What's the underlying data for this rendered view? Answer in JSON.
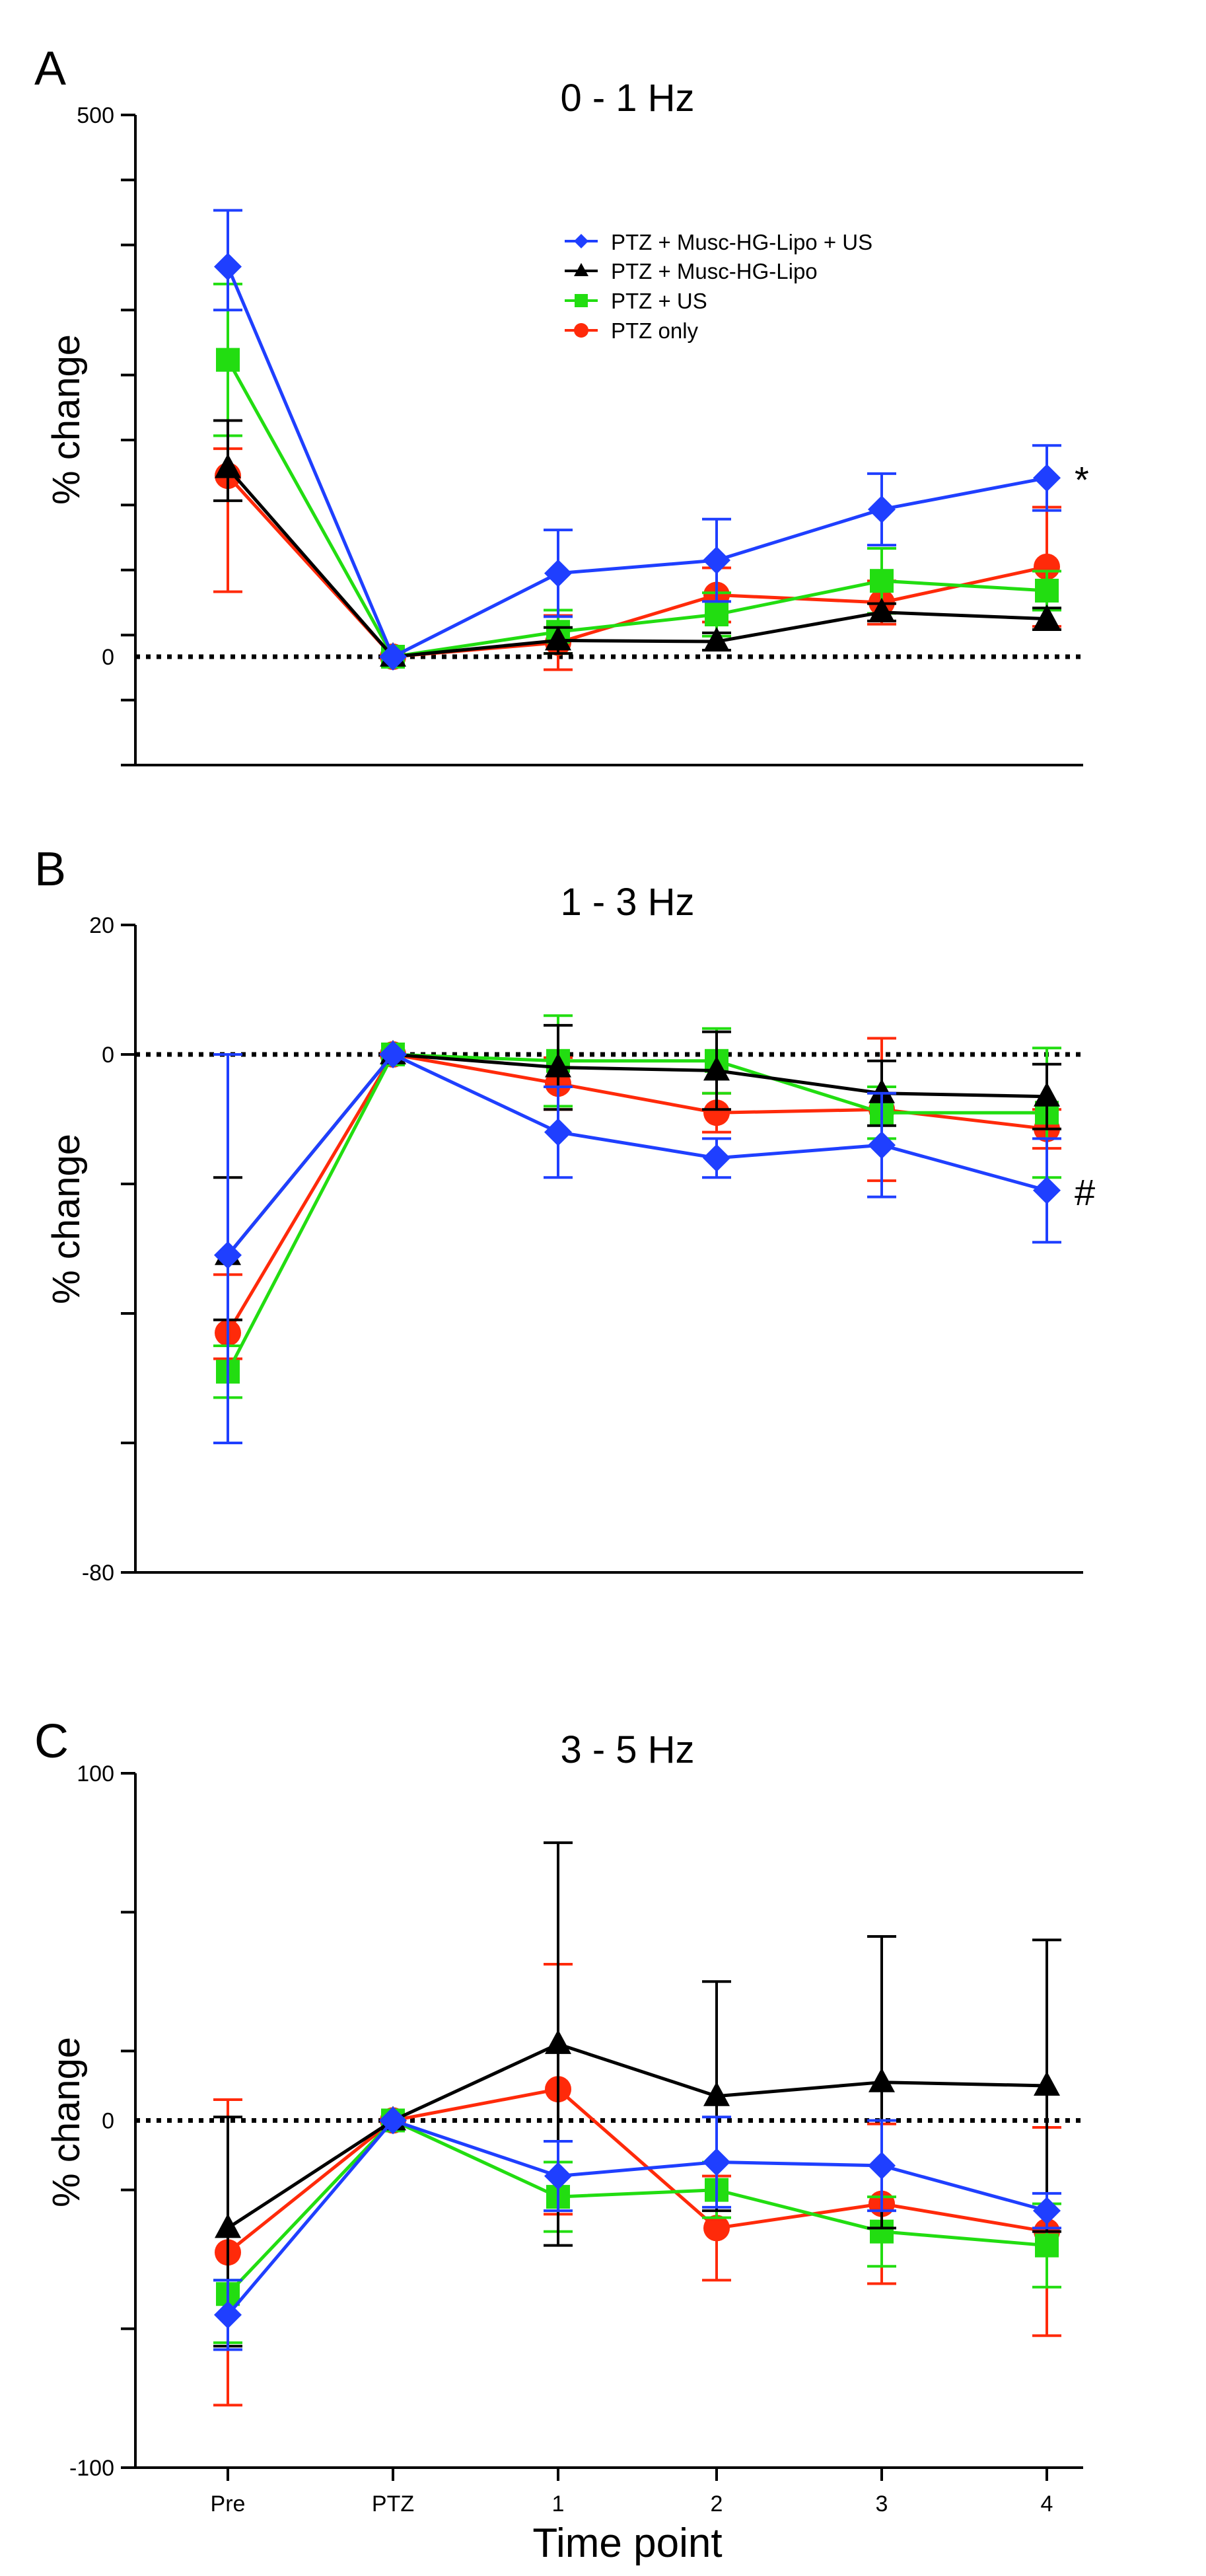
{
  "figure": {
    "xlabel": "Time point",
    "categories": [
      "Pre",
      "PTZ",
      "1",
      "2",
      "3",
      "4"
    ]
  },
  "legend": [
    {
      "name": "PTZ + Musc-HG-Lipo + US",
      "color": "#1f3fff",
      "marker": "diamond"
    },
    {
      "name": "PTZ + Musc-HG-Lipo",
      "color": "#000000",
      "marker": "triangle"
    },
    {
      "name": "PTZ + US",
      "color": "#22dd11",
      "marker": "square"
    },
    {
      "name": "PTZ only",
      "color": "#ff2a0a",
      "marker": "circle"
    }
  ],
  "chart_data": [
    {
      "type": "line",
      "panel_letter": "A",
      "title": "0 - 1 Hz",
      "ylabel": "% change",
      "xlabel": "",
      "categories": [
        "Pre",
        "PTZ",
        "1",
        "2",
        "3",
        "4"
      ],
      "ylim": [
        -100,
        500
      ],
      "yticks": [
        500,
        0
      ],
      "ytick_count": 10,
      "annotation": "*",
      "annotation_series": 0,
      "series": [
        {
          "name": "PTZ + Musc-HG-Lipo + US",
          "values": [
            360,
            0,
            77,
            89,
            136,
            165
          ],
          "err_up": [
            52,
            40,
            38,
            33,
            30
          ],
          "err_down": [
            40,
            40,
            38,
            33,
            30
          ]
        },
        {
          "name": "PTZ + Musc-HG-Lipo",
          "values": [
            174,
            0,
            15,
            14,
            41,
            35
          ],
          "err_up": [
            44,
            12,
            8,
            8,
            10
          ],
          "err_down": [
            30,
            12,
            8,
            8,
            10
          ]
        },
        {
          "name": "PTZ + US",
          "values": [
            274,
            0,
            23,
            39,
            70,
            61
          ],
          "err_up": [
            70,
            20,
            20,
            30,
            18
          ],
          "err_down": [
            70,
            20,
            20,
            30,
            18
          ]
        },
        {
          "name": "PTZ only",
          "values": [
            167,
            0,
            13,
            57,
            50,
            83
          ],
          "err_up": [
            25,
            25,
            25,
            20,
            55
          ],
          "err_down": [
            107,
            25,
            25,
            20,
            55
          ]
        }
      ]
    },
    {
      "type": "line",
      "panel_letter": "B",
      "title": "1 - 3 Hz",
      "ylabel": "% change",
      "xlabel": "",
      "categories": [
        "Pre",
        "PTZ",
        "1",
        "2",
        "3",
        "4"
      ],
      "ylim": [
        -80,
        20
      ],
      "yticks": [
        20,
        0,
        -80
      ],
      "ytick_count": 5,
      "annotation": "#",
      "annotation_series": 0,
      "series": [
        {
          "name": "PTZ + Musc-HG-Lipo + US",
          "values": [
            -31,
            0,
            -12,
            -16,
            -14,
            -21
          ],
          "err_up": [
            31,
            7,
            3,
            8,
            8
          ],
          "err_down": [
            29,
            7,
            3,
            8,
            8
          ]
        },
        {
          "name": "PTZ + Musc-HG-Lipo",
          "values": [
            -31,
            0,
            -2,
            -2.5,
            -6,
            -6.5
          ],
          "err_up": [
            12,
            6.5,
            6,
            5,
            5
          ],
          "err_down": [
            10,
            6.5,
            6,
            5,
            5
          ]
        },
        {
          "name": "PTZ + US",
          "values": [
            -49,
            0,
            -1,
            -1,
            -9,
            -9
          ],
          "err_up": [
            4,
            7,
            5,
            4,
            10
          ],
          "err_down": [
            4,
            7,
            5,
            4,
            10
          ]
        },
        {
          "name": "PTZ only",
          "values": [
            -43,
            0,
            -4.5,
            -9,
            -8.5,
            -11.5
          ],
          "err_up": [
            9,
            4,
            3,
            11,
            3
          ],
          "err_down": [
            4,
            4,
            3,
            11,
            3
          ]
        }
      ]
    },
    {
      "type": "line",
      "panel_letter": "C",
      "title": "3 - 5 Hz",
      "ylabel": "% change",
      "xlabel": "Time point",
      "categories": [
        "Pre",
        "PTZ",
        "1",
        "2",
        "3",
        "4"
      ],
      "ylim": [
        -100,
        100
      ],
      "yticks": [
        100,
        0,
        -100
      ],
      "ytick_count": 5,
      "annotation": "",
      "annotation_series": 0,
      "series": [
        {
          "name": "PTZ + Musc-HG-Lipo + US",
          "values": [
            -56,
            0,
            -16,
            -12,
            -13,
            -26
          ],
          "err_up": [
            10,
            10,
            13,
            13,
            5
          ],
          "err_down": [
            10,
            10,
            13,
            13,
            5
          ]
        },
        {
          "name": "PTZ + Musc-HG-Lipo",
          "values": [
            -31,
            0,
            22,
            7,
            11,
            10
          ],
          "err_up": [
            32,
            58,
            33,
            42,
            42
          ],
          "err_down": [
            34,
            58,
            33,
            42,
            42
          ]
        },
        {
          "name": "PTZ + US",
          "values": [
            -50,
            0,
            -22,
            -20,
            -32,
            -36
          ],
          "err_up": [
            4,
            10,
            8,
            10,
            12
          ],
          "err_down": [
            14,
            10,
            8,
            10,
            12
          ]
        },
        {
          "name": "PTZ only",
          "values": [
            -38,
            0,
            9,
            -31,
            -24,
            -32
          ],
          "err_up": [
            44,
            36,
            15,
            23,
            30
          ],
          "err_down": [
            44,
            36,
            15,
            23,
            30
          ]
        }
      ]
    }
  ]
}
